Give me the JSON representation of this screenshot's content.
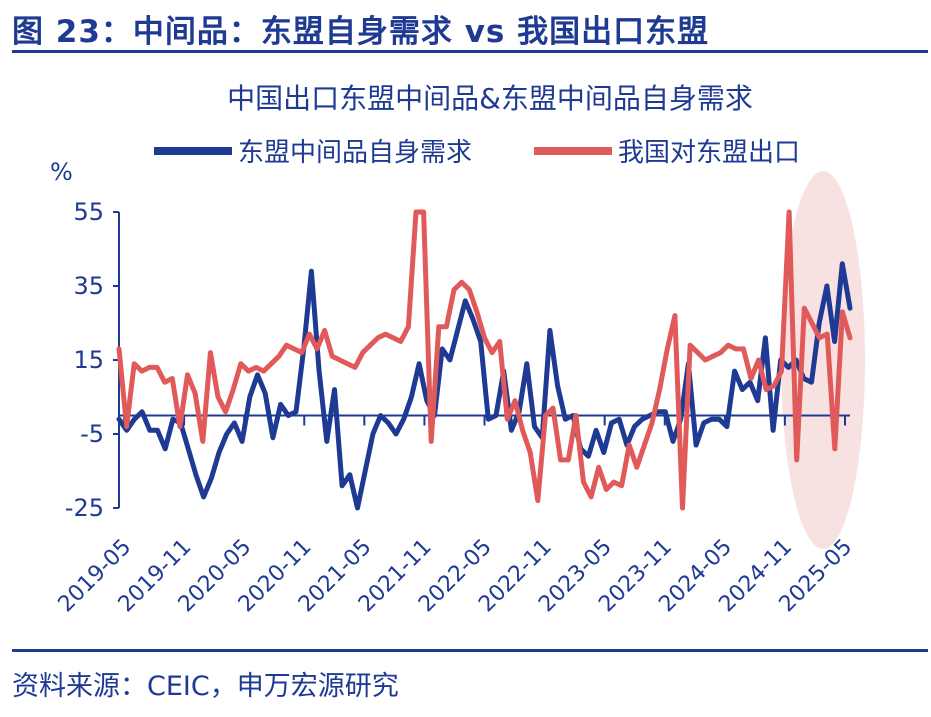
{
  "figure_title": "图 23：中间品：东盟自身需求 vs 我国出口东盟",
  "source": "资料来源：CEIC，申万宏源研究",
  "colors": {
    "navy": "#1f3a93",
    "red": "#e05a5a",
    "highlight": "#f7dede"
  },
  "chart_data": {
    "type": "line",
    "title": "中国出口东盟中间品&东盟中间品自身需求",
    "ylabel": "%",
    "ylim": [
      -25,
      55
    ],
    "yticks": [
      55,
      35,
      15,
      -5,
      -25
    ],
    "xticklabels": [
      "2019-05",
      "2019-11",
      "2020-05",
      "2020-11",
      "2021-05",
      "2021-11",
      "2022-05",
      "2022-11",
      "2023-05",
      "2023-11",
      "2024-05",
      "2024-11",
      "2025-05"
    ],
    "x_start": "2019-05",
    "x_end": "2025-06",
    "grid": false,
    "legend_position": "top",
    "highlight_region": [
      "2024-12",
      "2025-06"
    ],
    "series": [
      {
        "name": "东盟中间品自身需求",
        "color": "#1f3a93",
        "values": [
          -1,
          -4,
          -1,
          1,
          -4,
          -4,
          -9,
          -1,
          -2,
          -9,
          -16,
          -22,
          -17,
          -10,
          -5,
          -2,
          -7,
          5,
          11,
          6,
          -6,
          3,
          0,
          1,
          18,
          39,
          12,
          -7,
          7,
          -19,
          -16,
          -25,
          -15,
          -5,
          0,
          -2,
          -5,
          -1,
          5,
          14,
          4,
          0,
          18,
          15,
          23,
          31,
          26,
          20,
          -1,
          0,
          12,
          -4,
          1,
          14,
          -3,
          -6,
          23,
          8,
          -1,
          0,
          -9,
          -11,
          -4,
          -10,
          -2,
          -1,
          -8,
          -3,
          -1,
          0,
          1,
          1,
          -7,
          -1,
          14,
          -8,
          -2,
          -1,
          -1,
          -3,
          12,
          7,
          9,
          4,
          21,
          -4,
          15,
          13,
          15,
          10,
          9,
          25,
          35,
          20,
          41,
          29
        ]
      },
      {
        "name": "我国对东盟出口",
        "color": "#e05a5a",
        "values": [
          18,
          -3,
          14,
          12,
          13,
          13,
          9,
          10,
          -3,
          11,
          6,
          -7,
          17,
          5,
          1,
          7,
          14,
          12,
          13,
          12,
          14,
          16,
          19,
          18,
          17,
          22,
          18,
          23,
          16,
          15,
          14,
          13,
          17,
          19,
          21,
          22,
          21,
          20,
          24,
          55,
          55,
          -7,
          24,
          24,
          34,
          36,
          34,
          28,
          21,
          17,
          20,
          -1,
          4,
          -4,
          -10,
          -23,
          0,
          2,
          -12,
          -12,
          0,
          -18,
          -22,
          -14,
          -20,
          -18,
          -19,
          -8,
          -14,
          -8,
          -2,
          7,
          18,
          27,
          -25,
          19,
          17,
          15,
          16,
          17,
          19,
          18,
          18,
          10,
          15,
          7,
          8,
          12,
          55,
          -12,
          29,
          25,
          21,
          22,
          -9,
          28,
          21
        ]
      }
    ]
  }
}
